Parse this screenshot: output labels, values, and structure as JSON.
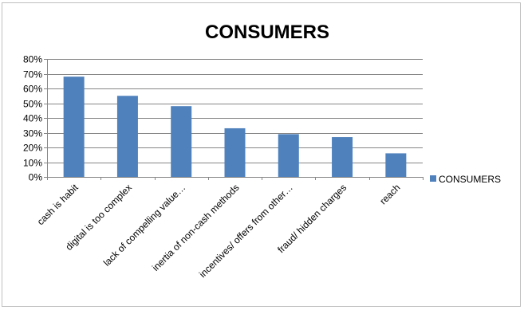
{
  "chart_data": {
    "type": "bar",
    "title": "CONSUMERS",
    "xlabel": "",
    "ylabel": "",
    "categories": [
      "cash is habit",
      "digital is too complex",
      "lack of compelling value…",
      "inertia of non-cash methods",
      "incentives/ offers from other…",
      "fraud/ hidden charges",
      "reach"
    ],
    "series": [
      {
        "name": "CONSUMERS",
        "values": [
          0.68,
          0.55,
          0.48,
          0.33,
          0.29,
          0.27,
          0.16
        ],
        "color": "#4f81bd"
      }
    ],
    "ylim": [
      0,
      0.8
    ],
    "yticks": [
      "0%",
      "10%",
      "20%",
      "30%",
      "40%",
      "50%",
      "60%",
      "70%",
      "80%"
    ],
    "grid": true,
    "legend_position": "right"
  }
}
